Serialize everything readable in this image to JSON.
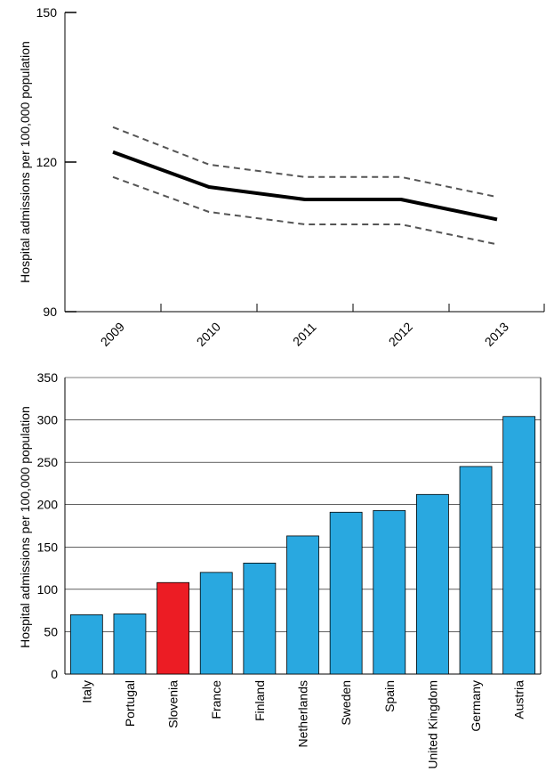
{
  "chart_data": [
    {
      "type": "line",
      "title": "",
      "xlabel": "",
      "ylabel": "Hospital admissions per 100,000 population",
      "x": [
        "2009",
        "2010",
        "2011",
        "2012",
        "2013"
      ],
      "ylim": [
        90,
        150
      ],
      "yticks": [
        "90",
        "120",
        "150"
      ],
      "grid": false,
      "series": [
        {
          "role": "estimate",
          "style": "solid",
          "values": [
            122,
            115,
            112.5,
            112.5,
            108.5
          ]
        },
        {
          "role": "upper bound",
          "style": "dashed",
          "values": [
            127,
            119.5,
            117,
            117,
            113
          ]
        },
        {
          "role": "lower bound",
          "style": "dashed",
          "values": [
            117,
            110,
            107.5,
            107.5,
            103.5
          ]
        }
      ],
      "colors": {
        "line": "#000000",
        "band": "#555555"
      }
    },
    {
      "type": "bar",
      "title": "",
      "xlabel": "",
      "ylabel": "Hospital admissions per 100,000 population",
      "categories": [
        "Italy",
        "Portugal",
        "Slovenia",
        "France",
        "Finland",
        "Netherlands",
        "Sweden",
        "Spain",
        "United Kingdom",
        "Germany",
        "Austria"
      ],
      "values": [
        70,
        71,
        108,
        120,
        131,
        163,
        191,
        193,
        212,
        245,
        304
      ],
      "highlight": "Slovenia",
      "ylim": [
        0,
        350
      ],
      "yticks": [
        "0",
        "50",
        "100",
        "150",
        "200",
        "250",
        "300",
        "350"
      ],
      "grid": true,
      "colors": {
        "bar": "#29a8e0",
        "highlight": "#ec1c24",
        "grid": "#000000"
      }
    }
  ]
}
